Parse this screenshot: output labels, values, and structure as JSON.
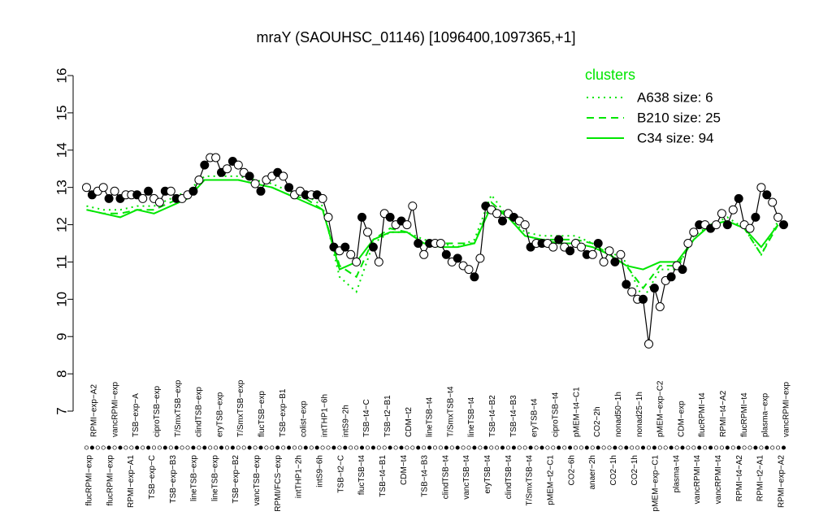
{
  "chart_data": {
    "type": "line",
    "title": "mraY (SAOUHSC_01146) [1096400,1097365,+1]",
    "xlabel": "",
    "ylabel": "",
    "ylim": [
      7,
      16
    ],
    "yticks": [
      7,
      8,
      9,
      10,
      11,
      12,
      13,
      14,
      15,
      16
    ],
    "grid": false,
    "legend": {
      "title": "clusters",
      "placement": "top-right",
      "entries": [
        {
          "label": "A638 size: 6",
          "style": "dotted",
          "color": "#00e600"
        },
        {
          "label": "B210 size: 25",
          "style": "dashed",
          "color": "#00e600"
        },
        {
          "label": "C34 size: 94",
          "style": "solid",
          "color": "#00e600"
        }
      ]
    },
    "top_labels": [
      "RPMI−exp−A2",
      "vancRPMI−exp",
      "TSB−exp−A",
      "ciproTSB−exp",
      "T/SmxTSB−exp",
      "clindTSB−exp",
      "eryTSB−exp",
      "T/SmxTSB−exp",
      "flucTSB−exp",
      "TSB−exp−B1",
      "colist−exp",
      "intTHP1−6h",
      "intS9−2h",
      "TSB−t4−C",
      "TSB−t2−B1",
      "CDM−t2",
      "lineTSB−t4",
      "T/SmxTSB−t4",
      "lineTSB−t4",
      "TSB−t4−B2",
      "TSB−t4−B3",
      "eryTSB−t4",
      "ciproTSB−t4",
      "pMEM−t4−C1",
      "CO2−2h",
      "nonad50−1h",
      "nonad25−1h",
      "pMEM−exp−C2",
      "CDM−exp",
      "flucRPMI−t4",
      "RPMI−t4−A2",
      "flucRPMI−t4",
      "plasma−exp",
      "vancRPMI−exp"
    ],
    "bottom_labels": [
      "flucRPMI−exp",
      "flucRPMI−exp",
      "RPMI−exp−A1",
      "TSB−exp−C",
      "TSB−exp−B3",
      "lineTSB−exp",
      "lineTSB−exp",
      "TSB−exp−B2",
      "vancTSB−exp",
      "RPMI/FCS−exp",
      "intTHP1−2h",
      "intS9−6h",
      "TSB−t2−C",
      "flucTSB−t4",
      "TSB−t4−B1",
      "CDM−t4",
      "TSB−t4−B3",
      "clindTSB−t4",
      "vancTSB−t4",
      "eryTSB−t4",
      "clindTSB−t4",
      "T/SmxTSB−t4",
      "pMEM−t2−C1",
      "CO2−6h",
      "anaer−2h",
      "CO2−1h",
      "CO2−1h",
      "pMEM−exp−C1",
      "plasma−t4",
      "vancRPMI−t4",
      "vancRPMI−t4",
      "RPMI−t4−A2",
      "RPMI−t2−A1",
      "RPMI−exp−A2"
    ],
    "series": [
      {
        "style": "solid",
        "color": "#000000",
        "x": [
          1,
          2,
          3,
          4,
          5,
          6,
          7,
          8,
          9,
          10,
          11,
          12,
          13,
          14,
          15,
          16,
          17,
          18,
          19,
          20,
          21,
          22,
          23,
          24,
          25,
          26,
          27,
          28,
          29,
          30,
          31,
          32,
          33,
          34,
          35,
          36,
          37,
          38,
          39,
          40,
          41,
          42,
          43,
          44,
          45,
          46,
          47,
          48,
          49,
          50,
          51,
          52,
          53,
          54,
          55,
          56,
          57,
          58,
          59,
          60,
          61,
          62,
          63,
          64,
          65,
          66,
          67,
          68,
          69,
          70,
          71,
          72,
          73,
          74,
          75,
          76,
          77,
          78,
          79,
          80,
          81,
          82,
          83,
          84,
          85,
          86,
          87,
          88,
          89,
          90,
          91,
          92,
          93,
          94,
          95,
          96,
          97,
          98,
          99,
          100,
          101,
          102,
          103,
          104,
          105,
          106,
          107,
          108,
          109,
          110,
          111,
          112,
          113,
          114,
          115,
          116,
          117,
          118,
          119,
          120,
          121,
          122,
          123,
          124,
          125
        ],
        "y": [
          13.0,
          12.8,
          12.9,
          13.0,
          12.7,
          12.9,
          12.7,
          12.8,
          12.8,
          12.8,
          12.7,
          12.9,
          12.7,
          12.6,
          12.9,
          12.9,
          12.7,
          12.7,
          12.8,
          12.9,
          13.2,
          13.6,
          13.8,
          13.8,
          13.4,
          13.5,
          13.7,
          13.6,
          13.4,
          13.3,
          13.1,
          12.9,
          13.2,
          13.3,
          13.4,
          13.3,
          13.0,
          12.8,
          12.9,
          12.8,
          12.8,
          12.8,
          12.7,
          12.2,
          11.4,
          11.3,
          11.4,
          11.2,
          11.0,
          12.2,
          11.8,
          11.4,
          11.0,
          12.3,
          12.2,
          12.0,
          12.1,
          12.0,
          12.5,
          11.5,
          11.2,
          11.5,
          11.5,
          11.5,
          11.2,
          11.0,
          11.1,
          10.9,
          10.8,
          10.6,
          11.1,
          12.5,
          12.4,
          12.3,
          12.1,
          12.3,
          12.2,
          12.1,
          12.0,
          11.4,
          11.5,
          11.5,
          11.5,
          11.4,
          11.6,
          11.4,
          11.3,
          11.5,
          11.4,
          11.2,
          11.2,
          11.5,
          11.0,
          11.3,
          11.0,
          11.2,
          10.4,
          10.2,
          10.0,
          10.0,
          8.8,
          10.3,
          9.8,
          10.5,
          10.6,
          10.9,
          10.8,
          11.5,
          11.8,
          12.0,
          12.0,
          11.9,
          12.0,
          12.3,
          12.0,
          12.4,
          12.7,
          12.0,
          11.9,
          12.2,
          13.0,
          12.8,
          12.6,
          12.2,
          12.0
        ]
      },
      {
        "name": "A638 size: 6",
        "style": "dotted",
        "color": "#00e600",
        "x": [
          1,
          4,
          7,
          10,
          13,
          16,
          19,
          22,
          25,
          28,
          31,
          34,
          37,
          40,
          43,
          46,
          49,
          52,
          55,
          58,
          61,
          64,
          67,
          70,
          73,
          76,
          79,
          82,
          85,
          88,
          91,
          94,
          97,
          100,
          103,
          106,
          109,
          112,
          115,
          118,
          121,
          124
        ],
        "y": [
          12.5,
          12.4,
          12.4,
          12.5,
          12.5,
          12.7,
          12.9,
          13.3,
          13.3,
          13.3,
          13.2,
          13.1,
          12.9,
          12.8,
          12.5,
          10.6,
          10.2,
          11.5,
          11.8,
          11.8,
          11.6,
          11.5,
          11.4,
          11.6,
          12.8,
          12.2,
          11.8,
          11.7,
          11.7,
          11.7,
          11.5,
          11.3,
          11.0,
          10.0,
          10.8,
          10.8,
          11.7,
          12.0,
          12.2,
          11.9,
          11.2,
          12.1
        ]
      },
      {
        "name": "B210 size: 25",
        "style": "dashed",
        "color": "#00e600",
        "x": [
          1,
          4,
          7,
          10,
          13,
          16,
          19,
          22,
          25,
          28,
          31,
          34,
          37,
          40,
          43,
          46,
          49,
          52,
          55,
          58,
          61,
          64,
          67,
          70,
          73,
          76,
          79,
          82,
          85,
          88,
          91,
          94,
          97,
          100,
          103,
          106,
          109,
          112,
          115,
          118,
          121,
          124
        ],
        "y": [
          12.4,
          12.3,
          12.3,
          12.4,
          12.4,
          12.6,
          12.8,
          13.2,
          13.2,
          13.2,
          13.1,
          13.0,
          12.8,
          12.7,
          12.4,
          10.9,
          10.6,
          11.6,
          11.9,
          11.8,
          11.5,
          11.5,
          11.5,
          11.5,
          12.6,
          12.2,
          11.7,
          11.6,
          11.6,
          11.6,
          11.5,
          11.2,
          10.9,
          10.3,
          10.9,
          10.9,
          11.6,
          12.0,
          12.1,
          11.9,
          11.2,
          12.0
        ]
      },
      {
        "name": "C34 size: 94",
        "style": "solid",
        "color": "#00e600",
        "x": [
          1,
          4,
          7,
          10,
          13,
          16,
          19,
          22,
          25,
          28,
          31,
          34,
          37,
          40,
          43,
          46,
          49,
          52,
          55,
          58,
          61,
          64,
          67,
          70,
          73,
          76,
          79,
          82,
          85,
          88,
          91,
          94,
          97,
          100,
          103,
          106,
          109,
          112,
          115,
          118,
          121,
          124
        ],
        "y": [
          12.4,
          12.3,
          12.2,
          12.4,
          12.3,
          12.5,
          12.7,
          13.2,
          13.2,
          13.2,
          13.1,
          13.0,
          12.8,
          12.6,
          12.4,
          10.8,
          11.0,
          11.6,
          11.8,
          11.8,
          11.5,
          11.4,
          11.4,
          11.5,
          12.5,
          12.2,
          11.7,
          11.6,
          11.5,
          11.5,
          11.4,
          11.2,
          10.9,
          10.8,
          11.0,
          11.0,
          11.6,
          12.0,
          12.1,
          11.9,
          11.4,
          12.0
        ]
      }
    ]
  }
}
